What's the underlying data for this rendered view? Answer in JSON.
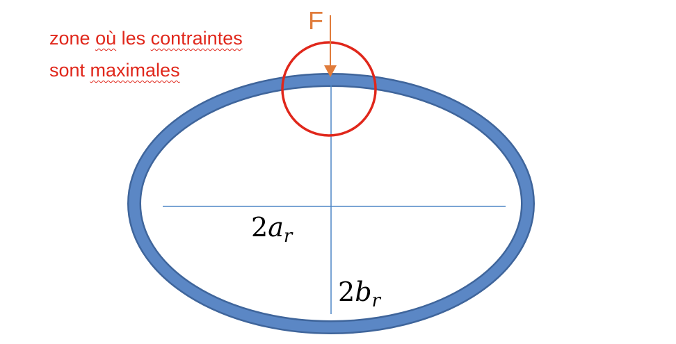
{
  "annotation": {
    "line1_pre": "zone ",
    "line1_underlined_1": "où",
    "line1_mid": " les ",
    "line1_underlined_2": "contraintes",
    "line2_pre": "sont ",
    "line2_underlined": "maximales"
  },
  "force": {
    "label": "F"
  },
  "dimensions": {
    "major_axis": {
      "coef": "2",
      "symbol": "a",
      "subscript": "r"
    },
    "minor_axis": {
      "coef": "2",
      "symbol": "b",
      "subscript": "r"
    }
  },
  "colors": {
    "ring_fill": "#5b87c5",
    "ring_stroke": "#3f659b",
    "axis_line": "#4f86c6",
    "force_arrow": "#e07b3a",
    "highlight_circle": "#e0271b",
    "annotation_text": "#e0271b",
    "squiggle": "#e0271b",
    "label_text": "#000000"
  }
}
